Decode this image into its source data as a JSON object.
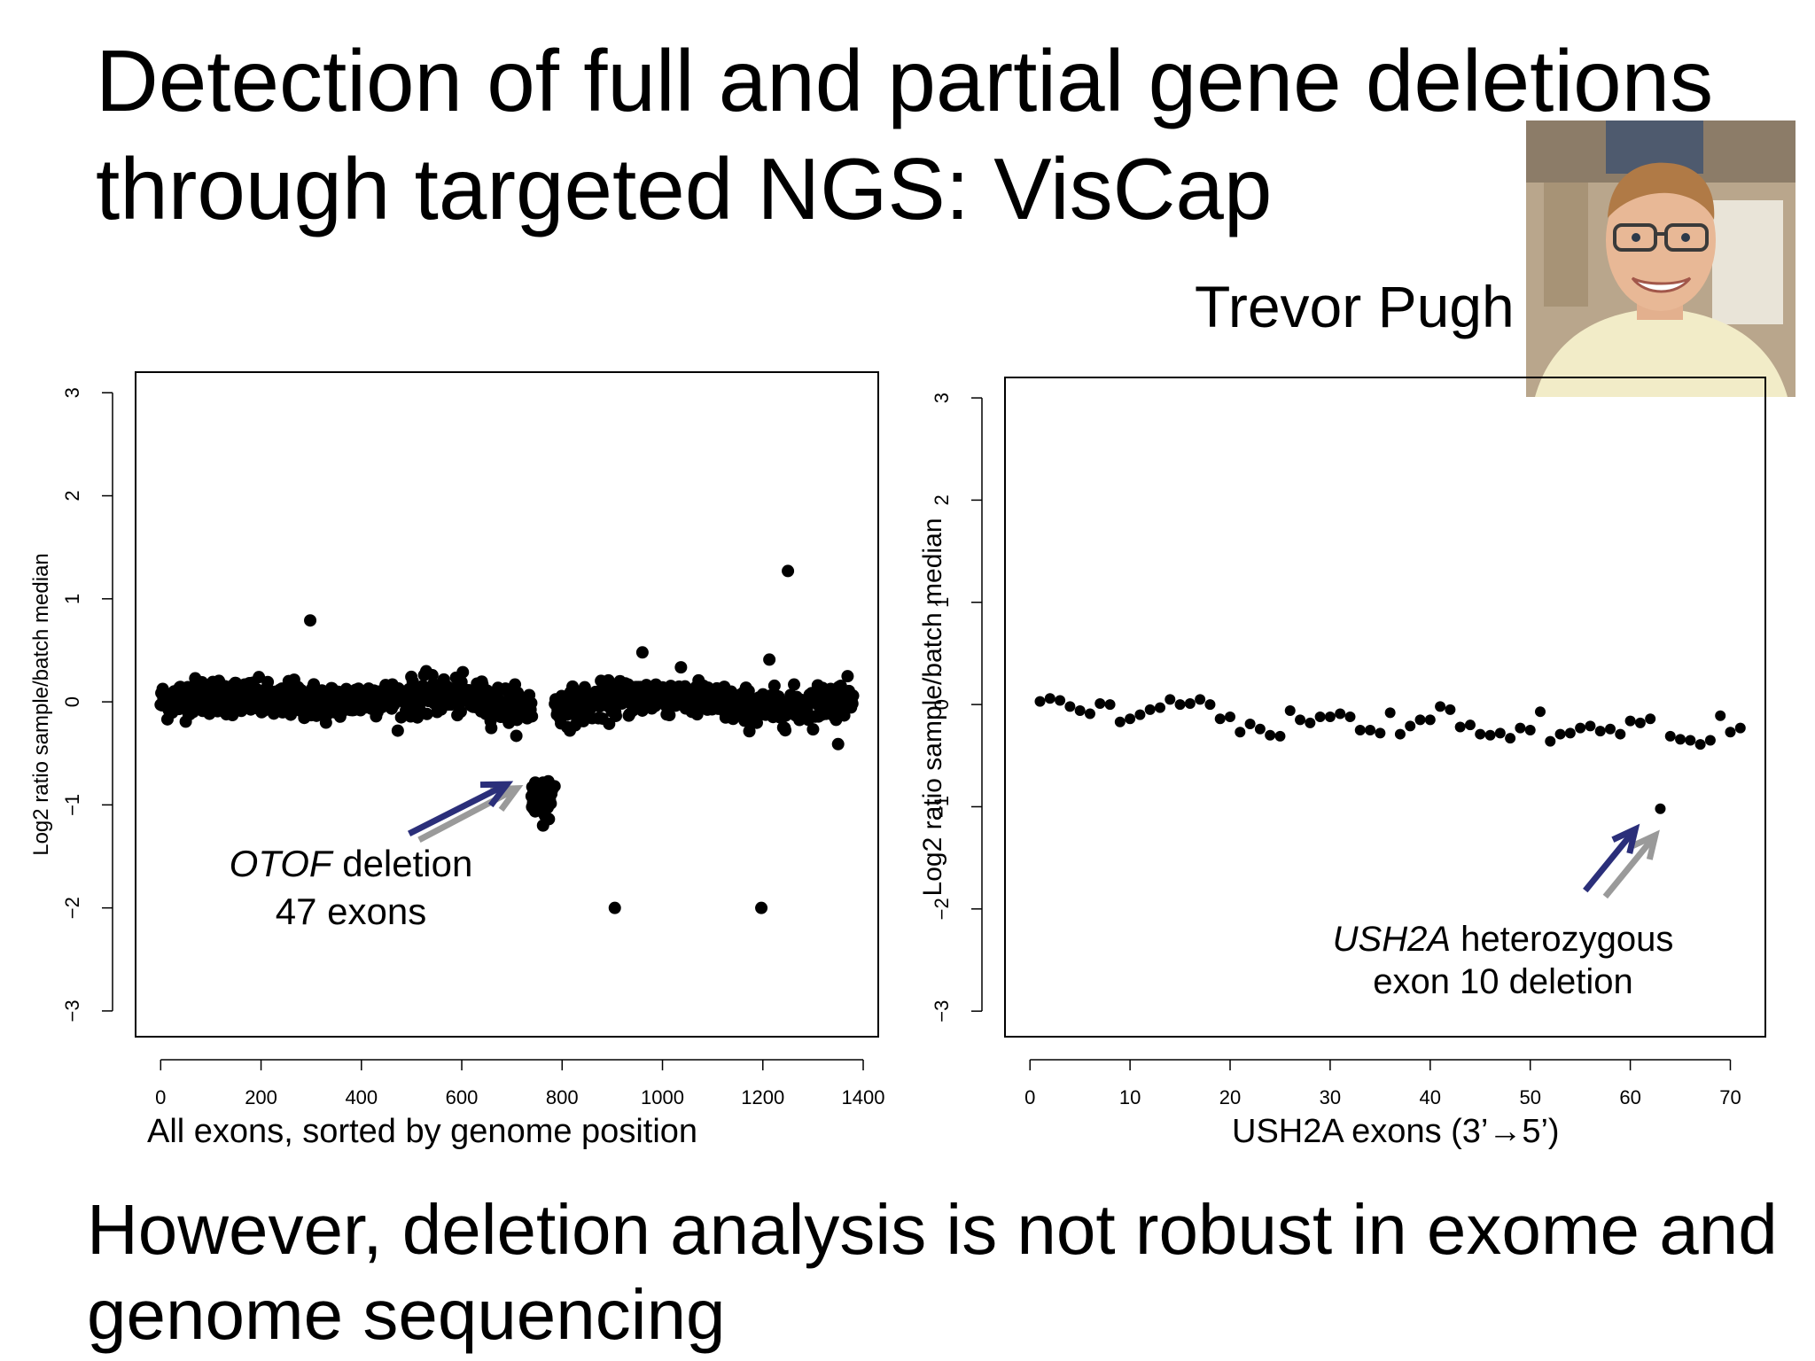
{
  "slide": {
    "title_line1": "Detection of full and partial gene deletions",
    "title_line2": "through targeted NGS: VisCap",
    "presenter": "Trevor Pugh",
    "conclusion_line1": "However, deletion analysis is not robust in exome and",
    "conclusion_line2": "genome sequencing"
  },
  "colors": {
    "point": "#000000",
    "arrow_front": "#2b2f7a",
    "arrow_back": "#9a9a9a"
  },
  "chart_data": [
    {
      "type": "scatter",
      "xlabel": "All exons, sorted by genome position",
      "ylabel": "Log2 ratio sample/batch median",
      "xlim": [
        -50,
        1430
      ],
      "ylim": [
        -3.25,
        3.2
      ],
      "xticks": [
        0,
        200,
        400,
        600,
        800,
        1000,
        1200,
        1400
      ],
      "yticks": [
        -3,
        -2,
        -1,
        0,
        1,
        2,
        3
      ],
      "grid": false,
      "annotation": {
        "gene": "OTOF",
        "text": " deletion",
        "line2": "47 exons"
      },
      "highlighted_region": {
        "x_range": [
          738,
          785
        ],
        "y_center": -0.92
      },
      "gap_region": {
        "x_range": [
          740,
          785
        ]
      },
      "bulk_profile": {
        "x_range": [
          0,
          1380
        ],
        "y_mean": 0.0,
        "spread": 0.16
      },
      "outliers": [
        {
          "x": 298,
          "y": 0.79
        },
        {
          "x": 1250,
          "y": 1.27
        },
        {
          "x": 905,
          "y": -2.0
        },
        {
          "x": 1197,
          "y": -2.0
        },
        {
          "x": 960,
          "y": 0.48
        },
        {
          "x": 1213,
          "y": 0.41
        },
        {
          "x": 1350,
          "y": -0.41
        },
        {
          "x": 762,
          "y": -1.2
        }
      ]
    },
    {
      "type": "scatter",
      "xlabel": "USH2A exons (3’→5’)",
      "ylabel": "Log2 ratio sample/batch median",
      "xlim": [
        -2.5,
        73.5
      ],
      "ylim": [
        -3.25,
        3.2
      ],
      "xticks": [
        0,
        10,
        20,
        30,
        40,
        50,
        60,
        70
      ],
      "yticks": [
        -3,
        -2,
        -1,
        0,
        1,
        2,
        3
      ],
      "grid": false,
      "annotation": {
        "gene": "USH2A",
        "text": " heterozygous",
        "line2": "exon 10 deletion"
      },
      "x": [
        1,
        2,
        3,
        4,
        5,
        6,
        7,
        8,
        9,
        10,
        11,
        12,
        13,
        14,
        15,
        16,
        17,
        18,
        19,
        20,
        21,
        22,
        23,
        24,
        25,
        26,
        27,
        28,
        29,
        30,
        31,
        32,
        33,
        34,
        35,
        36,
        37,
        38,
        39,
        40,
        41,
        42,
        43,
        44,
        45,
        46,
        47,
        48,
        49,
        50,
        51,
        52,
        53,
        54,
        55,
        56,
        57,
        58,
        59,
        60,
        61,
        62,
        63,
        64,
        65,
        66,
        67,
        68,
        69,
        70,
        71
      ],
      "y": [
        0.03,
        0.06,
        0.04,
        -0.02,
        -0.06,
        -0.09,
        0.01,
        0.0,
        -0.17,
        -0.14,
        -0.1,
        -0.05,
        -0.03,
        0.05,
        0.0,
        0.01,
        0.05,
        0.0,
        -0.14,
        -0.12,
        -0.27,
        -0.19,
        -0.24,
        -0.3,
        -0.31,
        -0.06,
        -0.15,
        -0.18,
        -0.12,
        -0.12,
        -0.09,
        -0.12,
        -0.25,
        -0.25,
        -0.28,
        -0.08,
        -0.29,
        -0.21,
        -0.15,
        -0.15,
        -0.02,
        -0.05,
        -0.22,
        -0.2,
        -0.29,
        -0.3,
        -0.28,
        -0.33,
        -0.23,
        -0.25,
        -0.07,
        -0.36,
        -0.29,
        -0.28,
        -0.23,
        -0.21,
        -0.26,
        -0.24,
        -0.29,
        -0.16,
        -0.18,
        -0.14,
        -1.02,
        -0.31,
        -0.34,
        -0.35,
        -0.39,
        -0.35,
        -0.11,
        -0.27,
        -0.23
      ]
    }
  ]
}
